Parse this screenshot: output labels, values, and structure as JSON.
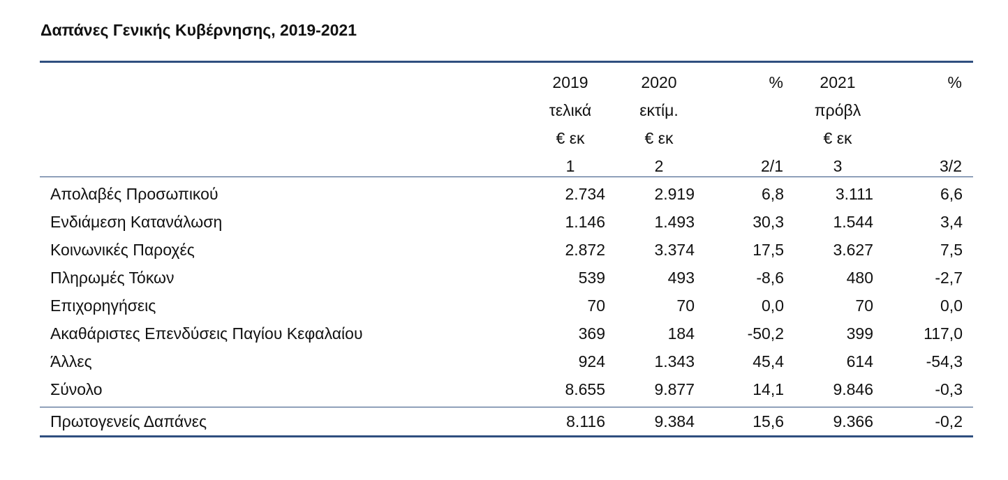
{
  "title": "Δαπάνες Γενικής Κυβέρνησης, 2019-2021",
  "columns": [
    {
      "lines": [
        "2019",
        "τελικά",
        "€ εκ",
        "1"
      ]
    },
    {
      "lines": [
        "2020",
        "εκτίμ.",
        "€ εκ",
        "2"
      ]
    },
    {
      "lines": [
        "%",
        "",
        "",
        "2/1"
      ]
    },
    {
      "lines": [
        "2021",
        "πρόβλ",
        "€ εκ",
        "3"
      ]
    },
    {
      "lines": [
        "%",
        "",
        "",
        "3/2"
      ]
    }
  ],
  "rows": [
    {
      "label": "Απολαβές Προσωπικού",
      "values": [
        "2.734",
        "2.919",
        "6,8",
        "3.111",
        "6,6"
      ]
    },
    {
      "label": "Ενδιάμεση Κατανάλωση",
      "values": [
        "1.146",
        "1.493",
        "30,3",
        "1.544",
        "3,4"
      ]
    },
    {
      "label": "Κοινωνικές Παροχές",
      "values": [
        "2.872",
        "3.374",
        "17,5",
        "3.627",
        "7,5"
      ]
    },
    {
      "label": "Πληρωμές Τόκων",
      "values": [
        "539",
        "493",
        "-8,6",
        "480",
        "-2,7"
      ]
    },
    {
      "label": "Επιχορηγήσεις",
      "values": [
        "70",
        "70",
        "0,0",
        "70",
        "0,0"
      ]
    },
    {
      "label": "Ακαθάριστες Επενδύσεις Παγίου Κεφαλαίου",
      "values": [
        "369",
        "184",
        "-50,2",
        "399",
        "117,0"
      ]
    },
    {
      "label": "Άλλες",
      "values": [
        "924",
        "1.343",
        "45,4",
        "614",
        "-54,3"
      ]
    },
    {
      "label": "Σύνολο",
      "values": [
        "8.655",
        "9.877",
        "14,1",
        "9.846",
        "-0,3"
      ]
    }
  ],
  "primary": {
    "label": "Πρωτογενείς Δαπάνες",
    "values": [
      "8.116",
      "9.384",
      "15,6",
      "9.366",
      "-0,2"
    ]
  }
}
